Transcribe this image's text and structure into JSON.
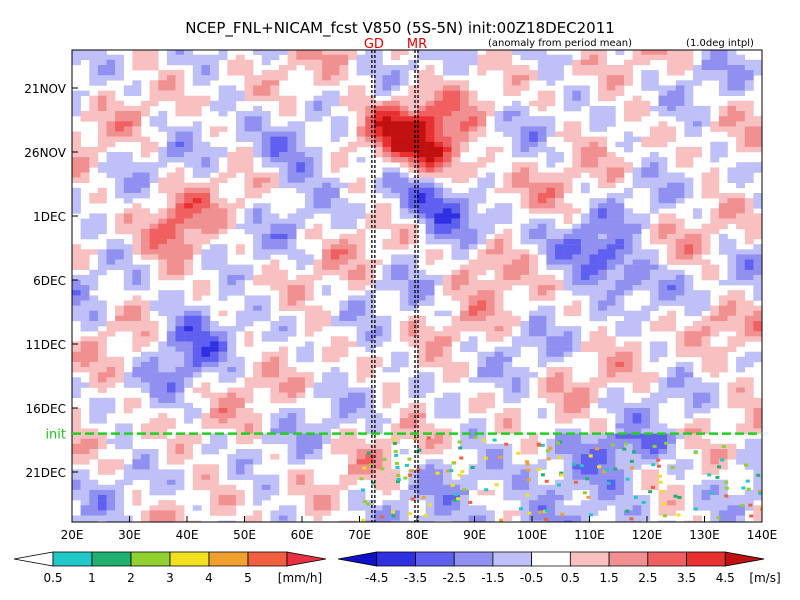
{
  "chart_data": {
    "type": "heatmap",
    "title": "NCEP_FNL+NICAM_fcst V850 (5S-5N) init:00Z18DEC2011",
    "subtitle_left": "(anomaly from period mean)",
    "subtitle_right": "(1.0deg intpl)",
    "x_ticks": [
      "20E",
      "30E",
      "40E",
      "50E",
      "60E",
      "70E",
      "80E",
      "90E",
      "100E",
      "110E",
      "120E",
      "130E",
      "140E"
    ],
    "x_range": [
      20,
      140
    ],
    "y_ticks": [
      "21NOV",
      "26NOV",
      "1DEC",
      "6DEC",
      "11DEC",
      "16DEC",
      "21DEC"
    ],
    "y_range_days_from_18NOV": [
      0,
      36
    ],
    "init_label": "init",
    "init_day": 30,
    "site_markers": [
      {
        "label": "GD",
        "lon": 72.5
      },
      {
        "label": "MR",
        "lon": 80
      }
    ],
    "series_field": {
      "name": "V850 anomaly",
      "description_colors": {
        "positive": "#e03030",
        "negative": "#2020e0"
      }
    },
    "precip_colorbar": {
      "unit": "[mm/h]",
      "tick_labels": [
        "0.5",
        "1",
        "2",
        "3",
        "4",
        "5"
      ],
      "colors": [
        "#ffffff",
        "#20c8c8",
        "#20b070",
        "#90d030",
        "#f0e020",
        "#f0a030",
        "#f06040",
        "#e83040"
      ]
    },
    "wind_colorbar": {
      "unit": "[m/s]",
      "tick_labels": [
        "-4.5",
        "-3.5",
        "-2.5",
        "-1.5",
        "-0.5",
        "0.5",
        "1.5",
        "2.5",
        "3.5",
        "4.5"
      ],
      "colors": [
        "#1010c8",
        "#3030e0",
        "#6060f0",
        "#9090f0",
        "#c0c0f8",
        "#ffffff",
        "#f8c0c0",
        "#f09090",
        "#f06060",
        "#e83030",
        "#c01010"
      ]
    }
  }
}
